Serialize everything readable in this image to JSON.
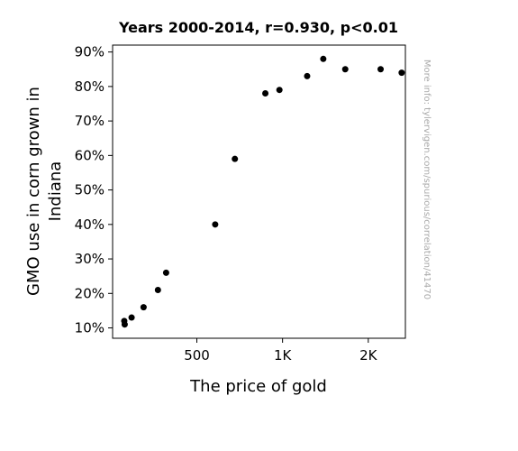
{
  "chart_data": {
    "type": "scatter",
    "title": "Years 2000-2014, r=0.930, p<0.01",
    "xlabel": "The price of gold",
    "ylabel_lines": [
      "GMO use in corn grown in",
      "Indiana"
    ],
    "x_scale": "log",
    "xlim": [
      253,
      2700
    ],
    "ylim": [
      7,
      92
    ],
    "x_ticks": [
      {
        "value": 500,
        "label": "500"
      },
      {
        "value": 1000,
        "label": "1K"
      },
      {
        "value": 2000,
        "label": "2K"
      }
    ],
    "y_ticks": [
      {
        "value": 10,
        "label": "10%"
      },
      {
        "value": 20,
        "label": "20%"
      },
      {
        "value": 30,
        "label": "30%"
      },
      {
        "value": 40,
        "label": "40%"
      },
      {
        "value": 50,
        "label": "50%"
      },
      {
        "value": 60,
        "label": "60%"
      },
      {
        "value": 70,
        "label": "70%"
      },
      {
        "value": 80,
        "label": "80%"
      },
      {
        "value": 90,
        "label": "90%"
      }
    ],
    "points": [
      {
        "x": 279,
        "y": 11
      },
      {
        "x": 278,
        "y": 12
      },
      {
        "x": 295,
        "y": 13
      },
      {
        "x": 325,
        "y": 16
      },
      {
        "x": 365,
        "y": 21
      },
      {
        "x": 390,
        "y": 26
      },
      {
        "x": 580,
        "y": 40
      },
      {
        "x": 680,
        "y": 59
      },
      {
        "x": 870,
        "y": 78
      },
      {
        "x": 975,
        "y": 79
      },
      {
        "x": 1220,
        "y": 83
      },
      {
        "x": 1390,
        "y": 88
      },
      {
        "x": 1660,
        "y": 85
      },
      {
        "x": 2210,
        "y": 85
      },
      {
        "x": 2620,
        "y": 84
      }
    ],
    "marker_color": "#000000",
    "grid": false,
    "watermark": "More info: tylervigen.com/spurious/correlation/41470"
  }
}
